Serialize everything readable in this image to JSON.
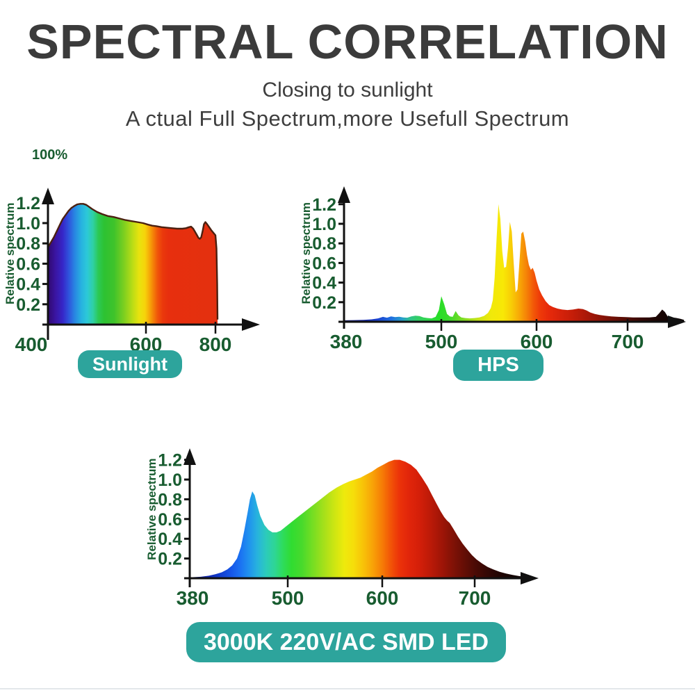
{
  "header": {
    "title": "SPECTRAL CORRELATION",
    "subtitle_line1": "Closing to sunlight",
    "subtitle_line2": "A ctual Full Spectrum,more Usefull Spectrum"
  },
  "corner_label": "100%",
  "colors": {
    "title_text": "#3b3b3b",
    "subtitle_text": "#3e3e3e",
    "axis_text_green": "#185c30",
    "axis_line": "#111111",
    "badge_teal": "#2da49c",
    "badge_text": "#ffffff",
    "sunlight_outline": "#4b2010"
  },
  "chart_data": [
    {
      "id": "sunlight",
      "type": "area",
      "badge": "Sunlight",
      "ylabel": "Relative spectrum",
      "xlabel": "",
      "x_ticks": [
        "400",
        "600",
        "800"
      ],
      "x_tick_values": [
        400,
        600,
        800
      ],
      "y_ticks": [
        "0.2",
        "0.4",
        "0.6",
        "0.8",
        "1.0",
        "1.2"
      ],
      "y_tick_values": [
        0.2,
        0.4,
        0.6,
        0.8,
        1.0,
        1.2
      ],
      "xlim": [
        400,
        806
      ],
      "ylim": [
        0,
        1.3
      ],
      "grid": false,
      "points": [
        [
          400,
          0.76
        ],
        [
          406,
          0.81
        ],
        [
          412,
          0.86
        ],
        [
          418,
          0.92
        ],
        [
          424,
          0.98
        ],
        [
          430,
          1.04
        ],
        [
          436,
          1.08
        ],
        [
          442,
          1.12
        ],
        [
          448,
          1.15
        ],
        [
          454,
          1.17
        ],
        [
          460,
          1.185
        ],
        [
          466,
          1.19
        ],
        [
          472,
          1.19
        ],
        [
          478,
          1.18
        ],
        [
          484,
          1.16
        ],
        [
          490,
          1.14
        ],
        [
          500,
          1.11
        ],
        [
          510,
          1.09
        ],
        [
          522,
          1.07
        ],
        [
          534,
          1.06
        ],
        [
          546,
          1.045
        ],
        [
          558,
          1.03
        ],
        [
          570,
          1.02
        ],
        [
          582,
          1.01
        ],
        [
          594,
          1.0
        ],
        [
          606,
          0.985
        ],
        [
          618,
          0.975
        ],
        [
          630,
          0.97
        ],
        [
          645,
          0.96
        ],
        [
          660,
          0.955
        ],
        [
          675,
          0.95
        ],
        [
          690,
          0.945
        ],
        [
          705,
          0.945
        ],
        [
          715,
          0.95
        ],
        [
          724,
          0.96
        ],
        [
          730,
          0.965
        ],
        [
          736,
          0.945
        ],
        [
          742,
          0.91
        ],
        [
          747,
          0.88
        ],
        [
          751,
          0.855
        ],
        [
          755,
          0.845
        ],
        [
          759,
          0.86
        ],
        [
          763,
          0.92
        ],
        [
          767,
          0.99
        ],
        [
          771,
          1.01
        ],
        [
          776,
          0.99
        ],
        [
          782,
          0.96
        ],
        [
          788,
          0.93
        ],
        [
          794,
          0.905
        ],
        [
          800,
          0.88
        ],
        [
          803,
          0.75
        ],
        [
          805,
          0.4
        ],
        [
          806,
          0.05
        ]
      ],
      "gradient_stops": [
        [
          400,
          "#30096e"
        ],
        [
          415,
          "#3a14a0"
        ],
        [
          430,
          "#3626c8"
        ],
        [
          442,
          "#2f52dc"
        ],
        [
          455,
          "#2887e2"
        ],
        [
          468,
          "#27b2e0"
        ],
        [
          480,
          "#2cc9d8"
        ],
        [
          492,
          "#2fd0a4"
        ],
        [
          503,
          "#2cc953"
        ],
        [
          515,
          "#2dc232"
        ],
        [
          535,
          "#3fc32b"
        ],
        [
          555,
          "#7ccf20"
        ],
        [
          572,
          "#b8dc16"
        ],
        [
          586,
          "#e8e30e"
        ],
        [
          598,
          "#f6d40a"
        ],
        [
          610,
          "#f6a908"
        ],
        [
          622,
          "#f47d08"
        ],
        [
          634,
          "#f0540a"
        ],
        [
          648,
          "#ea390c"
        ],
        [
          665,
          "#e72f0e"
        ],
        [
          806,
          "#e3300f"
        ]
      ]
    },
    {
      "id": "hps",
      "type": "area",
      "badge": "HPS",
      "ylabel": "Relative spectrum",
      "xlabel": "",
      "x_ticks": [
        "380",
        "500",
        "600",
        "700"
      ],
      "x_tick_values": [
        380,
        500,
        600,
        700
      ],
      "y_ticks": [
        "0.2",
        "0.4",
        "0.6",
        "0.8",
        "1.0",
        "1.2"
      ],
      "y_tick_values": [
        0.2,
        0.4,
        0.6,
        0.8,
        1.0,
        1.2
      ],
      "xlim": [
        380,
        762
      ],
      "ylim": [
        0,
        1.3
      ],
      "grid": false,
      "points": [
        [
          380,
          0.015
        ],
        [
          392,
          0.017
        ],
        [
          404,
          0.02
        ],
        [
          414,
          0.025
        ],
        [
          422,
          0.035
        ],
        [
          428,
          0.05
        ],
        [
          433,
          0.042
        ],
        [
          438,
          0.055
        ],
        [
          443,
          0.048
        ],
        [
          448,
          0.052
        ],
        [
          453,
          0.045
        ],
        [
          458,
          0.042
        ],
        [
          463,
          0.055
        ],
        [
          468,
          0.062
        ],
        [
          473,
          0.058
        ],
        [
          478,
          0.045
        ],
        [
          483,
          0.038
        ],
        [
          488,
          0.035
        ],
        [
          493,
          0.05
        ],
        [
          497,
          0.12
        ],
        [
          500,
          0.26
        ],
        [
          503,
          0.18
        ],
        [
          506,
          0.08
        ],
        [
          509,
          0.055
        ],
        [
          512,
          0.05
        ],
        [
          515,
          0.11
        ],
        [
          518,
          0.065
        ],
        [
          521,
          0.045
        ],
        [
          525,
          0.038
        ],
        [
          530,
          0.035
        ],
        [
          535,
          0.038
        ],
        [
          540,
          0.045
        ],
        [
          545,
          0.06
        ],
        [
          549,
          0.09
        ],
        [
          552,
          0.14
        ],
        [
          554,
          0.22
        ],
        [
          556,
          0.45
        ],
        [
          558,
          0.85
        ],
        [
          560,
          1.2
        ],
        [
          562,
          1.05
        ],
        [
          564,
          0.72
        ],
        [
          566,
          0.55
        ],
        [
          568,
          0.56
        ],
        [
          570,
          0.75
        ],
        [
          572,
          1.02
        ],
        [
          574,
          0.92
        ],
        [
          576,
          0.6
        ],
        [
          578,
          0.3
        ],
        [
          580,
          0.33
        ],
        [
          582,
          0.6
        ],
        [
          584,
          0.9
        ],
        [
          586,
          0.92
        ],
        [
          588,
          0.82
        ],
        [
          590,
          0.68
        ],
        [
          592,
          0.58
        ],
        [
          594,
          0.53
        ],
        [
          596,
          0.55
        ],
        [
          598,
          0.5
        ],
        [
          600,
          0.42
        ],
        [
          603,
          0.33
        ],
        [
          606,
          0.27
        ],
        [
          610,
          0.21
        ],
        [
          614,
          0.17
        ],
        [
          618,
          0.15
        ],
        [
          623,
          0.135
        ],
        [
          628,
          0.125
        ],
        [
          634,
          0.12
        ],
        [
          640,
          0.125
        ],
        [
          646,
          0.135
        ],
        [
          651,
          0.13
        ],
        [
          655,
          0.115
        ],
        [
          659,
          0.095
        ],
        [
          664,
          0.08
        ],
        [
          669,
          0.07
        ],
        [
          675,
          0.062
        ],
        [
          682,
          0.055
        ],
        [
          690,
          0.05
        ],
        [
          698,
          0.048
        ],
        [
          706,
          0.045
        ],
        [
          715,
          0.045
        ],
        [
          724,
          0.045
        ],
        [
          731,
          0.05
        ],
        [
          735,
          0.09
        ],
        [
          738,
          0.125
        ],
        [
          741,
          0.1
        ],
        [
          744,
          0.055
        ],
        [
          748,
          0.045
        ],
        [
          753,
          0.04
        ],
        [
          758,
          0.03
        ],
        [
          762,
          0.02
        ]
      ],
      "gradient_stops": [
        [
          380,
          "#10156e"
        ],
        [
          400,
          "#1523a0"
        ],
        [
          420,
          "#1a3ecc"
        ],
        [
          438,
          "#1f6ee0"
        ],
        [
          452,
          "#27a0c8"
        ],
        [
          462,
          "#2fc489"
        ],
        [
          472,
          "#33cf62"
        ],
        [
          485,
          "#2fd748"
        ],
        [
          497,
          "#27de27"
        ],
        [
          508,
          "#3cd92c"
        ],
        [
          520,
          "#70dc26"
        ],
        [
          532,
          "#abe01c"
        ],
        [
          543,
          "#d8e612"
        ],
        [
          552,
          "#f0e90a"
        ],
        [
          565,
          "#f8e806"
        ],
        [
          574,
          "#f8cb06"
        ],
        [
          582,
          "#f8a806"
        ],
        [
          590,
          "#f57f07"
        ],
        [
          597,
          "#f25708"
        ],
        [
          604,
          "#ee3a09"
        ],
        [
          613,
          "#e72a0a"
        ],
        [
          625,
          "#d8230a"
        ],
        [
          640,
          "#c41d08"
        ],
        [
          655,
          "#aa1808"
        ],
        [
          670,
          "#8e1407"
        ],
        [
          685,
          "#6e1006"
        ],
        [
          700,
          "#500c05"
        ],
        [
          715,
          "#360804"
        ],
        [
          730,
          "#1e0503"
        ],
        [
          745,
          "#120302"
        ],
        [
          762,
          "#0b0202"
        ]
      ]
    },
    {
      "id": "led",
      "type": "area",
      "badge": "3000K 220V/AC SMD LED",
      "ylabel": "Relative spectrum",
      "xlabel": "",
      "x_ticks": [
        "380",
        "500",
        "600",
        "700"
      ],
      "x_tick_values": [
        380,
        500,
        600,
        700
      ],
      "y_ticks": [
        "0.2",
        "0.4",
        "0.6",
        "0.8",
        "1.0",
        "1.2"
      ],
      "y_tick_values": [
        0.2,
        0.4,
        0.6,
        0.8,
        1.0,
        1.2
      ],
      "xlim": [
        380,
        760
      ],
      "ylim": [
        0,
        1.3
      ],
      "grid": false,
      "points": [
        [
          380,
          0.01
        ],
        [
          392,
          0.015
        ],
        [
          402,
          0.025
        ],
        [
          410,
          0.04
        ],
        [
          418,
          0.06
        ],
        [
          425,
          0.09
        ],
        [
          431,
          0.13
        ],
        [
          437,
          0.2
        ],
        [
          442,
          0.32
        ],
        [
          446,
          0.48
        ],
        [
          450,
          0.66
        ],
        [
          453,
          0.8
        ],
        [
          456,
          0.88
        ],
        [
          459,
          0.84
        ],
        [
          462,
          0.74
        ],
        [
          466,
          0.63
        ],
        [
          471,
          0.54
        ],
        [
          476,
          0.49
        ],
        [
          481,
          0.465
        ],
        [
          486,
          0.465
        ],
        [
          491,
          0.48
        ],
        [
          497,
          0.52
        ],
        [
          504,
          0.57
        ],
        [
          512,
          0.63
        ],
        [
          520,
          0.69
        ],
        [
          528,
          0.75
        ],
        [
          536,
          0.81
        ],
        [
          544,
          0.87
        ],
        [
          552,
          0.92
        ],
        [
          559,
          0.955
        ],
        [
          565,
          0.98
        ],
        [
          571,
          1.0
        ],
        [
          577,
          1.02
        ],
        [
          583,
          1.05
        ],
        [
          589,
          1.08
        ],
        [
          595,
          1.12
        ],
        [
          601,
          1.15
        ],
        [
          607,
          1.18
        ],
        [
          613,
          1.2
        ],
        [
          619,
          1.2
        ],
        [
          625,
          1.18
        ],
        [
          631,
          1.15
        ],
        [
          637,
          1.1
        ],
        [
          643,
          1.02
        ],
        [
          649,
          0.93
        ],
        [
          654,
          0.84
        ],
        [
          659,
          0.75
        ],
        [
          663,
          0.68
        ],
        [
          667,
          0.62
        ],
        [
          670,
          0.585
        ],
        [
          673,
          0.56
        ],
        [
          677,
          0.5
        ],
        [
          682,
          0.42
        ],
        [
          687,
          0.35
        ],
        [
          692,
          0.29
        ],
        [
          697,
          0.235
        ],
        [
          702,
          0.19
        ],
        [
          708,
          0.15
        ],
        [
          714,
          0.115
        ],
        [
          720,
          0.09
        ],
        [
          727,
          0.065
        ],
        [
          734,
          0.048
        ],
        [
          741,
          0.033
        ],
        [
          748,
          0.022
        ],
        [
          755,
          0.014
        ],
        [
          760,
          0.01
        ]
      ],
      "gradient_stops": [
        [
          380,
          "#0a1280"
        ],
        [
          400,
          "#0e24ae"
        ],
        [
          415,
          "#123ccc"
        ],
        [
          430,
          "#1656e8"
        ],
        [
          442,
          "#1b74f2"
        ],
        [
          452,
          "#2093ee"
        ],
        [
          462,
          "#27b2de"
        ],
        [
          473,
          "#2ccbbb"
        ],
        [
          484,
          "#2ed694"
        ],
        [
          494,
          "#2edc5c"
        ],
        [
          504,
          "#30dc31"
        ],
        [
          515,
          "#48da2c"
        ],
        [
          527,
          "#78de22"
        ],
        [
          539,
          "#a8e01a"
        ],
        [
          550,
          "#cfe612"
        ],
        [
          560,
          "#eeea0c"
        ],
        [
          570,
          "#f6dd0a"
        ],
        [
          580,
          "#f8c208"
        ],
        [
          590,
          "#f8a207"
        ],
        [
          600,
          "#f67c06"
        ],
        [
          609,
          "#f25507"
        ],
        [
          618,
          "#ec3409"
        ],
        [
          628,
          "#e2260a"
        ],
        [
          640,
          "#d41f09"
        ],
        [
          652,
          "#bc1a08"
        ],
        [
          664,
          "#a01507"
        ],
        [
          676,
          "#821206"
        ],
        [
          688,
          "#660e05"
        ],
        [
          700,
          "#4c0b05"
        ],
        [
          712,
          "#360804"
        ],
        [
          726,
          "#220503"
        ],
        [
          740,
          "#140302"
        ],
        [
          756,
          "#0c0202"
        ]
      ]
    }
  ]
}
